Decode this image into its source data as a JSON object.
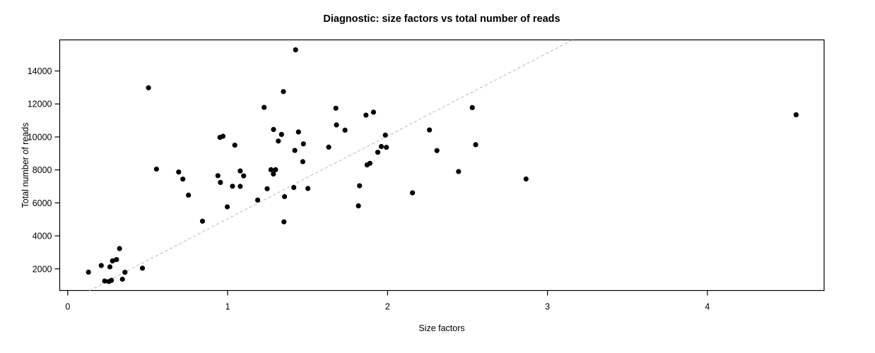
{
  "chart_data": {
    "type": "scatter",
    "title": "Diagnostic: size factors vs total number of reads",
    "xlabel": "Size factors",
    "ylabel": "Total number of reads",
    "xlim": [
      -0.05,
      4.73
    ],
    "ylim": [
      685,
      15885
    ],
    "x_ticks": [
      0,
      1,
      2,
      3,
      4
    ],
    "y_ticks": [
      2000,
      4000,
      6000,
      8000,
      10000,
      12000,
      14000
    ],
    "grid": false,
    "legend": "none",
    "point_color": "#000000",
    "point_radius": 3.6,
    "axis_color": "#000000",
    "reference_line": {
      "style": "dashed",
      "color": "#c6c6c6",
      "slope": 5030,
      "intercept": 0,
      "dash": "4.5 3"
    },
    "points": [
      [
        0.13,
        1800
      ],
      [
        0.21,
        2200
      ],
      [
        0.231,
        1260
      ],
      [
        0.257,
        1230
      ],
      [
        0.264,
        2120
      ],
      [
        0.273,
        1300
      ],
      [
        0.28,
        2480
      ],
      [
        0.305,
        2560
      ],
      [
        0.324,
        3230
      ],
      [
        0.342,
        1370
      ],
      [
        0.358,
        1790
      ],
      [
        0.467,
        2040
      ],
      [
        0.505,
        12980
      ],
      [
        0.555,
        8050
      ],
      [
        0.694,
        7870
      ],
      [
        0.72,
        7440
      ],
      [
        0.755,
        6470
      ],
      [
        0.843,
        4890
      ],
      [
        0.939,
        7650
      ],
      [
        0.952,
        9970
      ],
      [
        0.955,
        7240
      ],
      [
        0.971,
        10040
      ],
      [
        0.998,
        5760
      ],
      [
        1.03,
        7010
      ],
      [
        1.045,
        9500
      ],
      [
        1.079,
        7000
      ],
      [
        1.079,
        7940
      ],
      [
        1.1,
        7640
      ],
      [
        1.188,
        6170
      ],
      [
        1.228,
        11790
      ],
      [
        1.247,
        6860
      ],
      [
        1.271,
        8010
      ],
      [
        1.286,
        7750
      ],
      [
        1.287,
        10450
      ],
      [
        1.3,
        8010
      ],
      [
        1.317,
        9750
      ],
      [
        1.337,
        10150
      ],
      [
        1.349,
        12750
      ],
      [
        1.352,
        4850
      ],
      [
        1.356,
        6380
      ],
      [
        1.414,
        6930
      ],
      [
        1.42,
        9180
      ],
      [
        1.425,
        15280
      ],
      [
        1.443,
        10300
      ],
      [
        1.47,
        8500
      ],
      [
        1.474,
        9580
      ],
      [
        1.502,
        6870
      ],
      [
        1.632,
        9380
      ],
      [
        1.677,
        11740
      ],
      [
        1.681,
        10730
      ],
      [
        1.734,
        10410
      ],
      [
        1.818,
        5820
      ],
      [
        1.825,
        7040
      ],
      [
        1.865,
        11320
      ],
      [
        1.872,
        8300
      ],
      [
        1.89,
        8400
      ],
      [
        1.912,
        11500
      ],
      [
        1.939,
        9070
      ],
      [
        1.961,
        9420
      ],
      [
        1.986,
        10110
      ],
      [
        1.993,
        9370
      ],
      [
        2.156,
        6610
      ],
      [
        2.262,
        10420
      ],
      [
        2.309,
        9170
      ],
      [
        2.444,
        7900
      ],
      [
        2.53,
        11780
      ],
      [
        2.551,
        9530
      ],
      [
        2.866,
        7450
      ],
      [
        4.555,
        11340
      ]
    ]
  }
}
